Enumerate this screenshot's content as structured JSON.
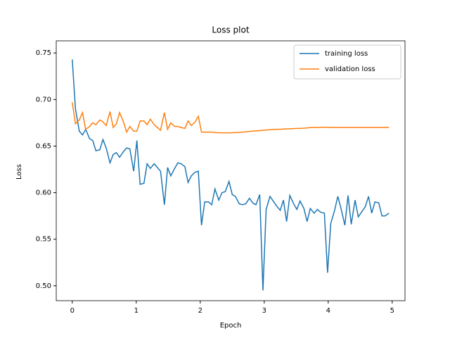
{
  "chart_data": {
    "type": "line",
    "title": "Loss plot",
    "x_label": "Epoch",
    "y_label": "Loss",
    "x": [
      0,
      0.05,
      0.11,
      0.16,
      0.21,
      0.27,
      0.32,
      0.37,
      0.43,
      0.48,
      0.53,
      0.59,
      0.64,
      0.69,
      0.74,
      0.8,
      0.85,
      0.9,
      0.96,
      1.01,
      1.06,
      1.12,
      1.17,
      1.22,
      1.28,
      1.33,
      1.38,
      1.44,
      1.49,
      1.54,
      1.6,
      1.65,
      1.7,
      1.76,
      1.81,
      1.86,
      1.92,
      1.97,
      2.02,
      2.07,
      2.13,
      2.18,
      2.23,
      2.29,
      2.34,
      2.39,
      2.45,
      2.5,
      2.55,
      2.61,
      2.66,
      2.71,
      2.77,
      2.82,
      2.87,
      2.93,
      2.98,
      3.03,
      3.09,
      3.14,
      3.19,
      3.25,
      3.3,
      3.35,
      3.4,
      3.46,
      3.51,
      3.56,
      3.62,
      3.67,
      3.72,
      3.78,
      3.83,
      3.88,
      3.94,
      3.99,
      4.04,
      4.1,
      4.15,
      4.2,
      4.26,
      4.31,
      4.36,
      4.42,
      4.47,
      4.52,
      4.58,
      4.63,
      4.68,
      4.73,
      4.79,
      4.84,
      4.89,
      4.95
    ],
    "series": [
      {
        "name": "training loss",
        "color": "#1f77b4",
        "values": [
          0.743,
          0.69,
          0.666,
          0.662,
          0.668,
          0.658,
          0.656,
          0.645,
          0.646,
          0.657,
          0.648,
          0.632,
          0.641,
          0.643,
          0.638,
          0.644,
          0.648,
          0.647,
          0.623,
          0.656,
          0.609,
          0.61,
          0.631,
          0.626,
          0.631,
          0.627,
          0.623,
          0.587,
          0.627,
          0.618,
          0.626,
          0.632,
          0.631,
          0.628,
          0.611,
          0.618,
          0.622,
          0.623,
          0.565,
          0.59,
          0.59,
          0.587,
          0.604,
          0.592,
          0.6,
          0.601,
          0.612,
          0.598,
          0.596,
          0.588,
          0.587,
          0.588,
          0.594,
          0.589,
          0.587,
          0.598,
          0.495,
          0.582,
          0.596,
          0.591,
          0.586,
          0.581,
          0.592,
          0.569,
          0.597,
          0.588,
          0.582,
          0.591,
          0.583,
          0.569,
          0.583,
          0.578,
          0.582,
          0.579,
          0.578,
          0.514,
          0.567,
          0.581,
          0.596,
          0.583,
          0.565,
          0.597,
          0.566,
          0.592,
          0.574,
          0.579,
          0.585,
          0.596,
          0.578,
          0.59,
          0.589,
          0.575,
          0.575,
          0.578
        ]
      },
      {
        "name": "validation loss",
        "color": "#ff7f0e",
        "values": [
          0.697,
          0.674,
          0.678,
          0.686,
          0.668,
          0.671,
          0.675,
          0.673,
          0.678,
          0.676,
          0.672,
          0.687,
          0.67,
          0.674,
          0.686,
          0.676,
          0.665,
          0.671,
          0.666,
          0.666,
          0.677,
          0.677,
          0.673,
          0.679,
          0.673,
          0.67,
          0.667,
          0.686,
          0.668,
          0.675,
          0.671,
          0.671,
          0.67,
          0.669,
          0.677,
          0.672,
          0.676,
          0.682,
          0.665,
          0.665,
          0.665,
          0.665,
          0.6645,
          0.6643,
          0.6642,
          0.6642,
          0.6642,
          0.6643,
          0.6645,
          0.6647,
          0.665,
          0.6653,
          0.6657,
          0.666,
          0.6663,
          0.6667,
          0.667,
          0.6673,
          0.6675,
          0.6678,
          0.668,
          0.668,
          0.6683,
          0.6685,
          0.6685,
          0.6688,
          0.669,
          0.669,
          0.6692,
          0.6695,
          0.6698,
          0.67,
          0.67,
          0.6702,
          0.6702,
          0.6702,
          0.67,
          0.67,
          0.67,
          0.67,
          0.67,
          0.67,
          0.67,
          0.67,
          0.67,
          0.67,
          0.67,
          0.67,
          0.67,
          0.67,
          0.67,
          0.67,
          0.67,
          0.67
        ]
      }
    ],
    "xlim": [
      -0.25,
      5.2
    ],
    "ylim": [
      0.484,
      0.763
    ],
    "xticks": [
      0,
      1,
      2,
      3,
      4,
      5
    ],
    "yticks": [
      {
        "value": 0.5,
        "label": "0.50"
      },
      {
        "value": 0.55,
        "label": "0.55"
      },
      {
        "value": 0.6,
        "label": "0.60"
      },
      {
        "value": 0.65,
        "label": "0.65"
      },
      {
        "value": 0.7,
        "label": "0.70"
      },
      {
        "value": 0.75,
        "label": "0.75"
      }
    ],
    "legend": "upper right"
  }
}
